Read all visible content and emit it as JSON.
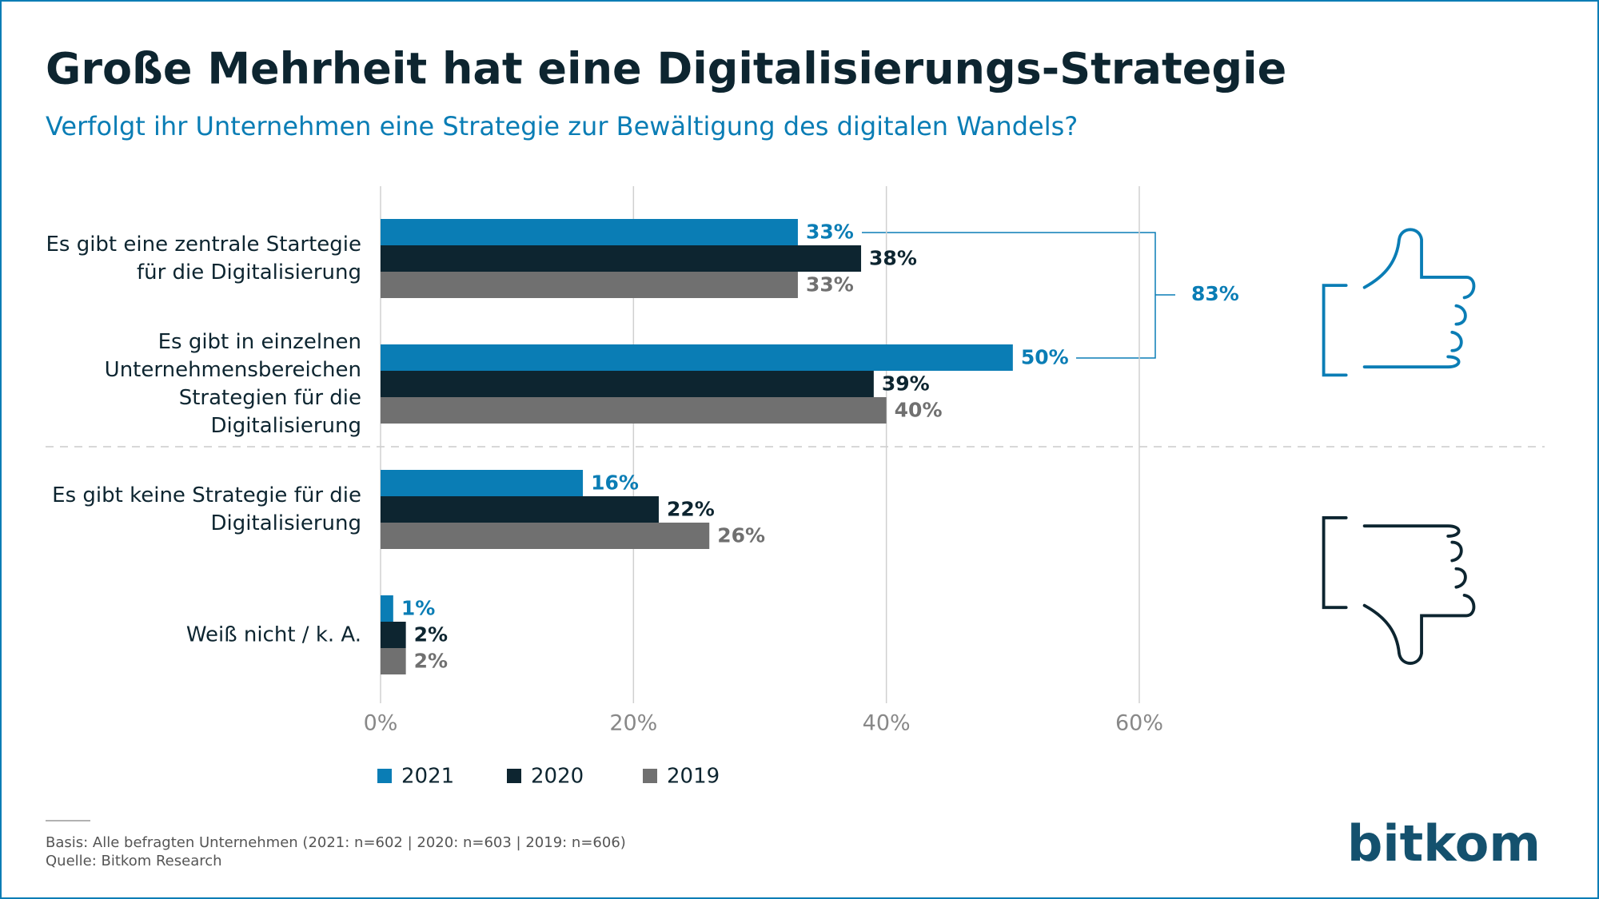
{
  "chart_data": {
    "type": "bar",
    "orientation": "horizontal",
    "title": "Große Mehrheit hat eine Digitalisierungs-Strategie",
    "subtitle": "Verfolgt ihr Unternehmen eine Strategie zur Bewältigung des digitalen Wandels?",
    "categories": [
      "Es gibt eine zentrale Startegie für die Digitalisierung",
      "Es gibt in einzelnen Unternehmensbereichen Strategien für die Digitalisierung",
      "Es gibt keine Strategie für die Digitalisierung",
      "Weiß nicht / k. A."
    ],
    "series": [
      {
        "name": "2021",
        "color": "#0a7db5",
        "values": [
          33,
          50,
          16,
          1
        ],
        "value_labels": [
          "33%",
          "50%",
          "16%",
          "1%"
        ]
      },
      {
        "name": "2020",
        "color": "#0d2530",
        "values": [
          38,
          39,
          22,
          2
        ],
        "value_labels": [
          "38%",
          "39%",
          "22%",
          "2%"
        ]
      },
      {
        "name": "2019",
        "color": "#707070",
        "values": [
          33,
          40,
          26,
          2
        ],
        "value_labels": [
          "33%",
          "40%",
          "26%",
          "2%"
        ]
      }
    ],
    "xlim": [
      0,
      60
    ],
    "xticks": [
      {
        "value": 0,
        "label": "0%"
      },
      {
        "value": 20,
        "label": "20%"
      },
      {
        "value": 40,
        "label": "40%"
      },
      {
        "value": 60,
        "label": "60%"
      }
    ],
    "grid": true,
    "legend": "bottom",
    "annotation": "83%",
    "footnotes": [
      "Basis: Alle befragten Unternehmen (2021: n=602 | 2020: n=603 | 2019: n=606)",
      "Quelle: Bitkom Research"
    ],
    "logo": "bitkom"
  }
}
